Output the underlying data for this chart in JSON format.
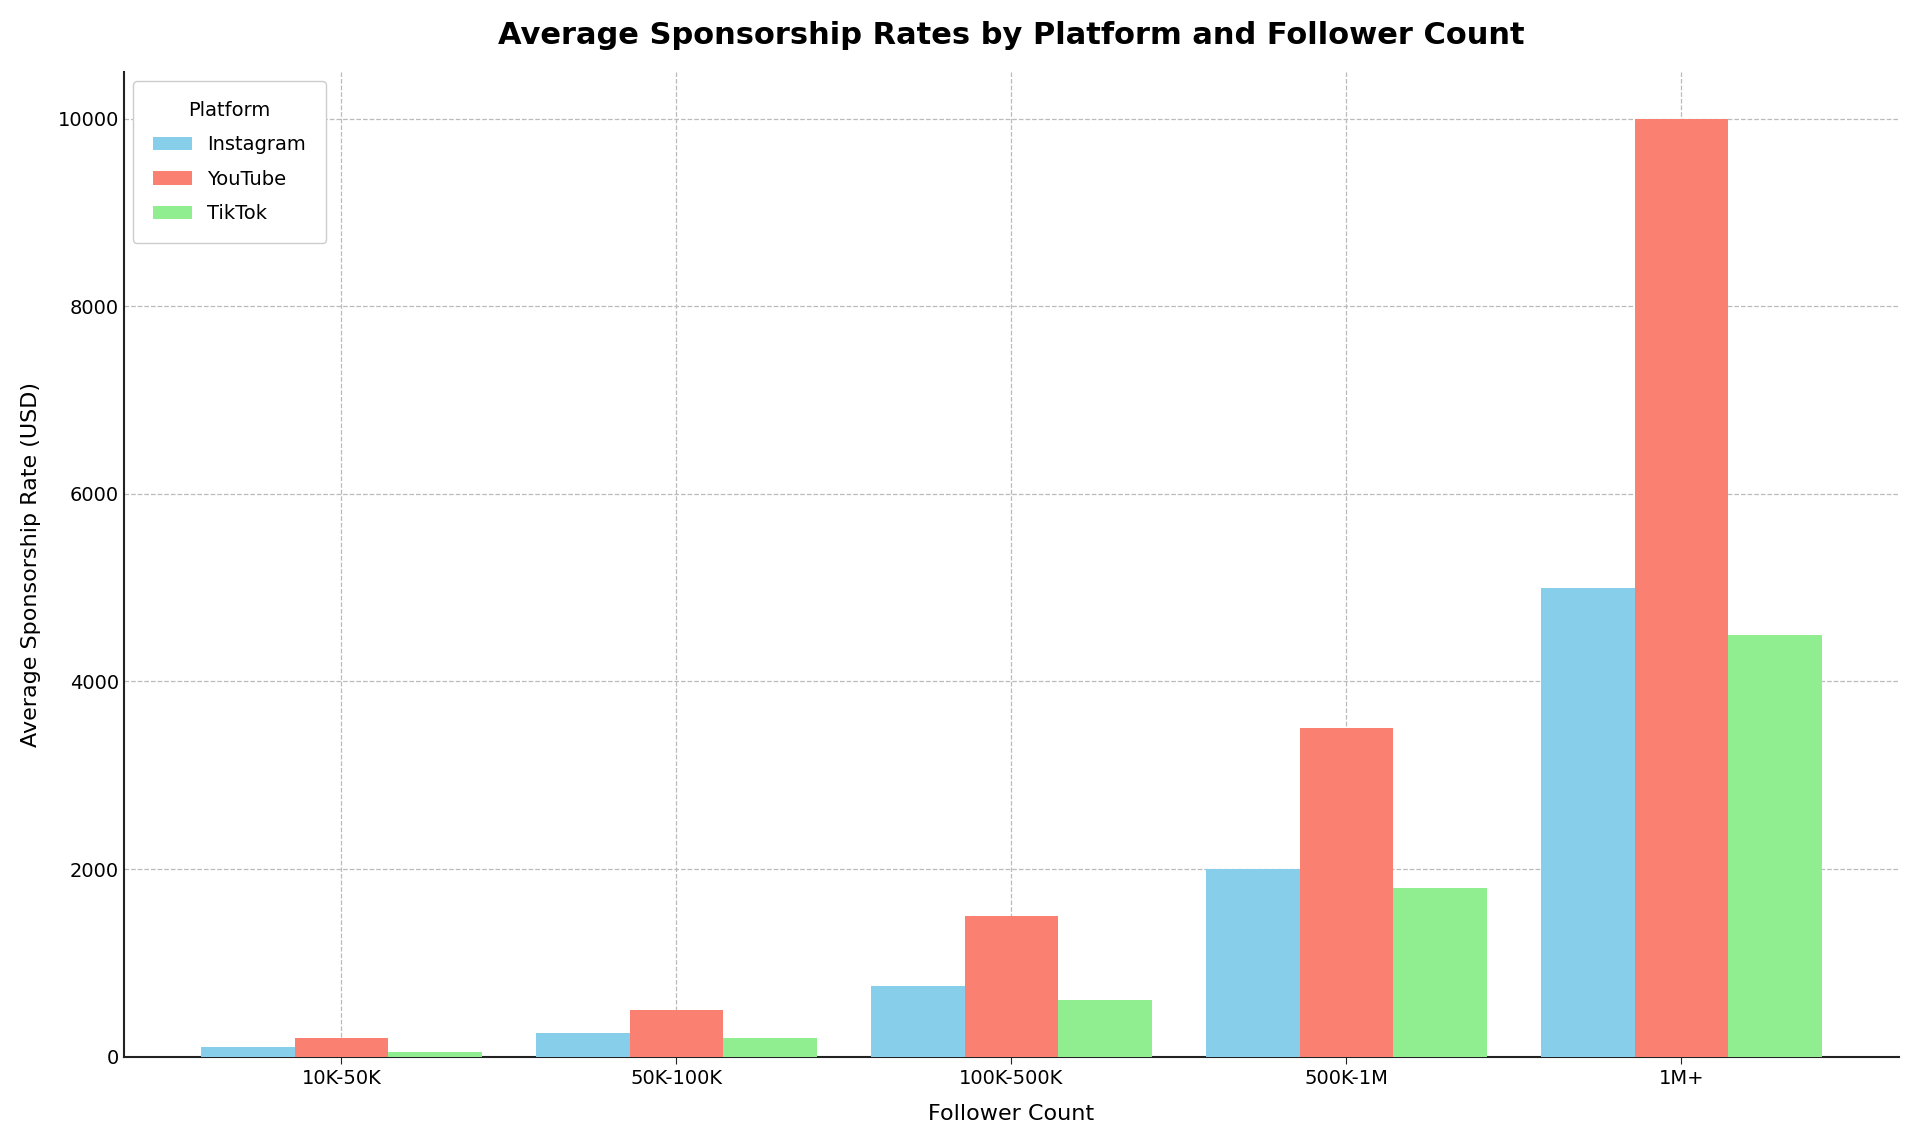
{
  "title": "Average Sponsorship Rates by Platform and Follower Count",
  "xlabel": "Follower Count",
  "ylabel": "Average Sponsorship Rate (USD)",
  "categories": [
    "10K-50K",
    "50K-100K",
    "100K-500K",
    "500K-1M",
    "1M+"
  ],
  "platforms": [
    "Instagram",
    "YouTube",
    "TikTok"
  ],
  "values": {
    "Instagram": [
      100,
      250,
      750,
      2000,
      5000
    ],
    "YouTube": [
      200,
      500,
      1500,
      3500,
      10000
    ],
    "TikTok": [
      50,
      200,
      600,
      1800,
      4500
    ]
  },
  "colors": {
    "Instagram": "#87CEEB",
    "YouTube": "#FA8072",
    "TikTok": "#90EE90"
  },
  "ylim": [
    0,
    10500
  ],
  "yticks": [
    0,
    2000,
    4000,
    6000,
    8000,
    10000
  ],
  "legend_title": "Platform",
  "legend_loc": "upper left",
  "background_color": "#ffffff",
  "grid_color": "#bbbbbb",
  "title_fontsize": 22,
  "axis_label_fontsize": 16,
  "tick_fontsize": 14,
  "legend_fontsize": 14,
  "bar_width": 0.28,
  "spine_color": "#222222"
}
